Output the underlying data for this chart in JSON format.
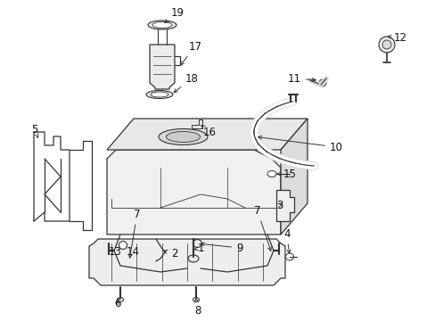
{
  "bg_color": "#ffffff",
  "line_color": "#333333",
  "label_color": "#111111",
  "label_fontsize": 8.5,
  "fig_width": 4.89,
  "fig_height": 3.6,
  "dpi": 100
}
